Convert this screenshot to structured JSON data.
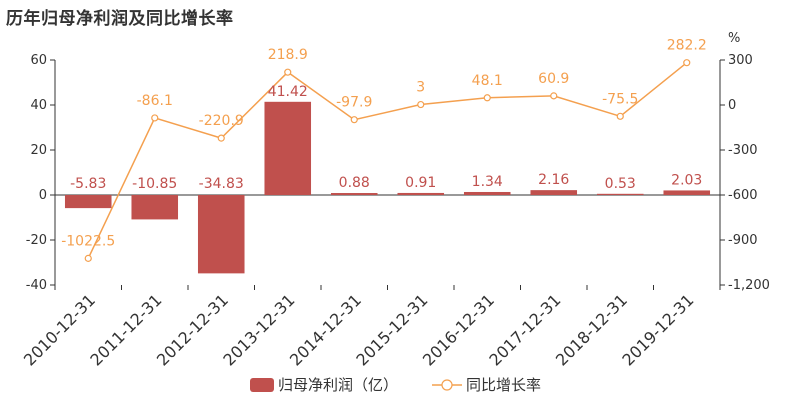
{
  "chart_data": {
    "type": "bar",
    "title": "历年归母净利润及同比增长率",
    "categories": [
      "2010-12-31",
      "2011-12-31",
      "2012-12-31",
      "2013-12-31",
      "2014-12-31",
      "2015-12-31",
      "2016-12-31",
      "2017-12-31",
      "2018-12-31",
      "2019-12-31"
    ],
    "series": [
      {
        "name": "归母净利润（亿）",
        "type": "bar",
        "axis": "left",
        "values": [
          -5.83,
          -10.85,
          -34.83,
          41.42,
          0.88,
          0.91,
          1.34,
          2.16,
          0.53,
          2.03
        ],
        "labels": [
          "-5.83",
          "-10.85",
          "-34.83",
          "41.42",
          "0.88",
          "0.91",
          "1.34",
          "2.16",
          "0.53",
          "2.03"
        ]
      },
      {
        "name": "同比增长率",
        "type": "line",
        "axis": "right",
        "values": [
          -1022.5,
          -86.1,
          -220.9,
          218.9,
          -97.9,
          3,
          48.1,
          60.9,
          -75.5,
          282.2
        ],
        "labels": [
          "-1022.5",
          "-86.1",
          "-220.9",
          "218.9",
          "-97.9",
          "3",
          "48.1",
          "60.9",
          "-75.5",
          "282.2"
        ]
      }
    ],
    "left_axis": {
      "ylim": [
        -40,
        60
      ],
      "ticks": [
        "60",
        "40",
        "20",
        "0",
        "-20",
        "-40"
      ],
      "tick_values": [
        60,
        40,
        20,
        0,
        -20,
        -40
      ]
    },
    "right_axis": {
      "ylim": [
        -1200,
        300
      ],
      "unit": "%",
      "ticks": [
        "300",
        "0",
        "-300",
        "-600",
        "-900",
        "-1,200"
      ],
      "tick_values": [
        300,
        0,
        -300,
        -600,
        -900,
        -1200
      ]
    },
    "legend_position": "bottom-center",
    "colors": {
      "bar": "#c0504d",
      "line": "#f4a04f"
    }
  }
}
